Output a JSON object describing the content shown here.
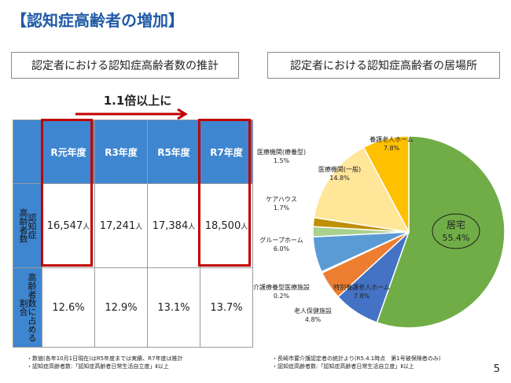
{
  "page": {
    "title": "【認知症高齢者の増加】",
    "page_number": "5"
  },
  "left": {
    "box_title": "認定者における認知症高齢者数の推計",
    "growth_label": "1.1倍以上に",
    "row1_header": "認知症\n高齢者数",
    "row2_header": "高齢者数に占める\n割合",
    "unit": "人",
    "accent": "#3f86d0",
    "highlight_color": "#c00000",
    "notes": [
      "・数値(各年10月1日現在)はR5年度までは実績、R7年度は推計",
      "・認知症高齢者数:「認知症高齢者日常生活自立度」Ⅱ以上"
    ]
  },
  "right": {
    "box_title": "認定者における認知症高齢者の居場所",
    "notes": [
      "・長崎市要介護認定者の統計より(R5.4.1時点　第1号被保険者のみ)",
      "・認知症高齢者数:「認知症高齢者日常生活自立度」Ⅱ以上"
    ]
  },
  "chart_data": [
    {
      "type": "table",
      "columns": [
        "R元年度",
        "R3年度",
        "R5年度",
        "R7年度"
      ],
      "rows": [
        {
          "label": "認知症高齢者数",
          "values": [
            "16,547",
            "17,241",
            "17,384",
            "18,500"
          ]
        },
        {
          "label": "高齢者数に占める割合",
          "values": [
            "12.6%",
            "12.9%",
            "13.1%",
            "13.7%"
          ]
        }
      ],
      "highlighted_columns": [
        "R元年度",
        "R7年度"
      ]
    },
    {
      "type": "pie",
      "title": "認定者における認知症高齢者の居場所",
      "slices": [
        {
          "label": "居宅",
          "value": 55.4,
          "display": "55.4%",
          "color": "#70ad47"
        },
        {
          "label": "特別養護老人ホーム",
          "value": 7.8,
          "display": "7.8%",
          "color": "#4472c4"
        },
        {
          "label": "老人保健施設",
          "value": 4.8,
          "display": "4.8%",
          "color": "#ed7d31"
        },
        {
          "label": "介護療養型医療施設",
          "value": 0.2,
          "display": "0.2%",
          "color": "#a5a5a5"
        },
        {
          "label": "グループホーム",
          "value": 6.0,
          "display": "6.0%",
          "color": "#5b9bd5"
        },
        {
          "label": "ケアハウス",
          "value": 1.7,
          "display": "1.7%",
          "color": "#a9d18e"
        },
        {
          "label": "医療機関(療養型)",
          "value": 1.5,
          "display": "1.5%",
          "color": "#bf9000"
        },
        {
          "label": "医療機関(一般)",
          "value": 14.8,
          "display": "14.8%",
          "color": "#ffe699"
        },
        {
          "label": "養護老人ホーム",
          "value": 7.8,
          "display": "7.8%",
          "color": "#ffc000"
        }
      ]
    }
  ]
}
